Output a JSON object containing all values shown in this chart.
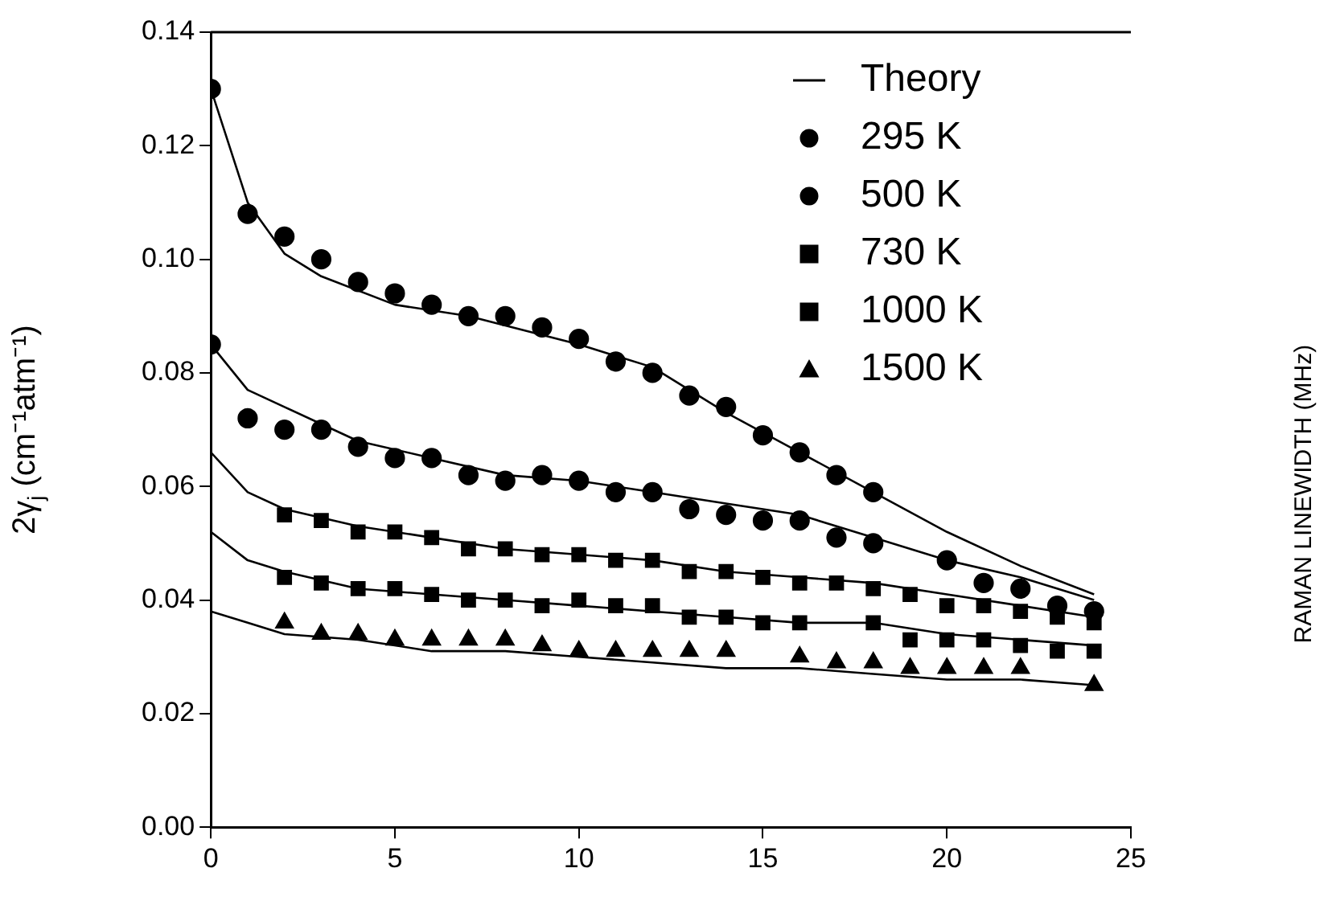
{
  "chart_data": {
    "type": "scatter",
    "ylabel": "2γ$_{j}$ (cm⁻¹atm⁻¹)",
    "annotations": [
      "RAMAN LINEWIDTH (MHz)"
    ],
    "xlim": [
      0,
      25
    ],
    "xticks": [
      0,
      5,
      10,
      15,
      20,
      25
    ],
    "ylim": [
      0,
      0.14
    ],
    "yticks": [
      {
        "value": 0,
        "label": "0.00"
      },
      0.02,
      0.04,
      0.06,
      0.08,
      {
        "value": 0.1,
        "label": "0.10"
      },
      0.12,
      0.14
    ],
    "grid": false,
    "legend": "top right",
    "series": [
      {
        "name": "Theory",
        "type": "line",
        "marker": "none",
        "color": "#000000",
        "x": [
          0,
          1,
          2,
          3,
          5,
          7,
          10,
          12,
          14,
          16,
          18,
          20,
          22,
          24
        ],
        "values": [
          0.13,
          0.11,
          0.101,
          0.097,
          0.092,
          0.09,
          0.085,
          0.081,
          0.073,
          0.066,
          0.059,
          0.052,
          0.046,
          0.041
        ]
      },
      {
        "name": "295 K",
        "type": "scatter",
        "marker": "circle",
        "color": "#000000",
        "x": [
          0,
          1,
          2,
          3,
          4,
          5,
          6,
          7,
          8,
          9,
          10,
          11,
          12,
          13,
          14,
          15,
          16,
          17,
          18
        ],
        "values": [
          0.13,
          0.108,
          0.104,
          0.1,
          0.096,
          0.094,
          0.092,
          0.09,
          0.09,
          0.088,
          0.086,
          0.082,
          0.08,
          0.076,
          0.074,
          0.069,
          0.066,
          0.062,
          0.059
        ]
      },
      {
        "type": "line",
        "marker": "none",
        "color": "#000000",
        "x": [
          0,
          1,
          2,
          4,
          6,
          8,
          10,
          12,
          14,
          16,
          18,
          20,
          22,
          24
        ],
        "values": [
          0.085,
          0.077,
          0.074,
          0.068,
          0.065,
          0.062,
          0.061,
          0.059,
          0.057,
          0.055,
          0.051,
          0.047,
          0.044,
          0.04
        ]
      },
      {
        "name": "500 K",
        "type": "scatter",
        "marker": "circle",
        "color": "#000000",
        "x": [
          0,
          1,
          2,
          3,
          4,
          5,
          6,
          7,
          8,
          9,
          10,
          11,
          12,
          13,
          14,
          15,
          16,
          17,
          18,
          20,
          21,
          22,
          23,
          24
        ],
        "values": [
          0.085,
          0.072,
          0.07,
          0.07,
          0.067,
          0.065,
          0.065,
          0.062,
          0.061,
          0.062,
          0.061,
          0.059,
          0.059,
          0.056,
          0.055,
          0.054,
          0.054,
          0.051,
          0.05,
          0.047,
          0.043,
          0.042,
          0.039,
          0.038
        ]
      },
      {
        "type": "line",
        "marker": "none",
        "color": "#000000",
        "x": [
          0,
          1,
          2,
          4,
          6,
          8,
          10,
          12,
          14,
          16,
          18,
          20,
          22,
          24
        ],
        "values": [
          0.066,
          0.059,
          0.056,
          0.053,
          0.051,
          0.049,
          0.048,
          0.047,
          0.045,
          0.044,
          0.043,
          0.041,
          0.039,
          0.037
        ]
      },
      {
        "name": "730 K",
        "type": "scatter",
        "marker": "square",
        "color": "#000000",
        "x": [
          2,
          3,
          4,
          5,
          6,
          7,
          8,
          9,
          10,
          11,
          12,
          13,
          14,
          15,
          16,
          17,
          18,
          19,
          20,
          21,
          22,
          23,
          24
        ],
        "values": [
          0.055,
          0.054,
          0.052,
          0.052,
          0.051,
          0.049,
          0.049,
          0.048,
          0.048,
          0.047,
          0.047,
          0.045,
          0.045,
          0.044,
          0.043,
          0.043,
          0.042,
          0.041,
          0.039,
          0.039,
          0.038,
          0.037,
          0.036
        ]
      },
      {
        "type": "line",
        "marker": "none",
        "color": "#000000",
        "x": [
          0,
          1,
          2,
          4,
          6,
          8,
          10,
          12,
          14,
          16,
          18,
          20,
          22,
          24
        ],
        "values": [
          0.052,
          0.047,
          0.045,
          0.042,
          0.041,
          0.04,
          0.039,
          0.038,
          0.037,
          0.036,
          0.036,
          0.034,
          0.033,
          0.032
        ]
      },
      {
        "name": "1000 K",
        "type": "scatter",
        "marker": "square",
        "color": "#000000",
        "x": [
          2,
          3,
          4,
          5,
          6,
          7,
          8,
          9,
          10,
          11,
          12,
          13,
          14,
          15,
          16,
          18,
          19,
          20,
          21,
          22,
          23,
          24
        ],
        "values": [
          0.044,
          0.043,
          0.042,
          0.042,
          0.041,
          0.04,
          0.04,
          0.039,
          0.04,
          0.039,
          0.039,
          0.037,
          0.037,
          0.036,
          0.036,
          0.036,
          0.033,
          0.033,
          0.033,
          0.032,
          0.031,
          0.031
        ]
      },
      {
        "type": "line",
        "marker": "none",
        "color": "#000000",
        "x": [
          0,
          1,
          2,
          4,
          6,
          8,
          10,
          12,
          14,
          16,
          18,
          20,
          22,
          24
        ],
        "values": [
          0.038,
          0.036,
          0.034,
          0.033,
          0.031,
          0.031,
          0.03,
          0.029,
          0.028,
          0.028,
          0.027,
          0.026,
          0.026,
          0.025
        ]
      },
      {
        "name": "1500 K",
        "type": "scatter",
        "marker": "triangle",
        "color": "#000000",
        "x": [
          2,
          3,
          4,
          5,
          6,
          7,
          8,
          9,
          10,
          11,
          12,
          13,
          14,
          16,
          17,
          18,
          19,
          20,
          21,
          22,
          24
        ],
        "values": [
          0.036,
          0.034,
          0.034,
          0.033,
          0.033,
          0.033,
          0.033,
          0.032,
          0.031,
          0.031,
          0.031,
          0.031,
          0.031,
          0.03,
          0.029,
          0.029,
          0.028,
          0.028,
          0.028,
          0.028,
          0.025
        ]
      }
    ]
  }
}
